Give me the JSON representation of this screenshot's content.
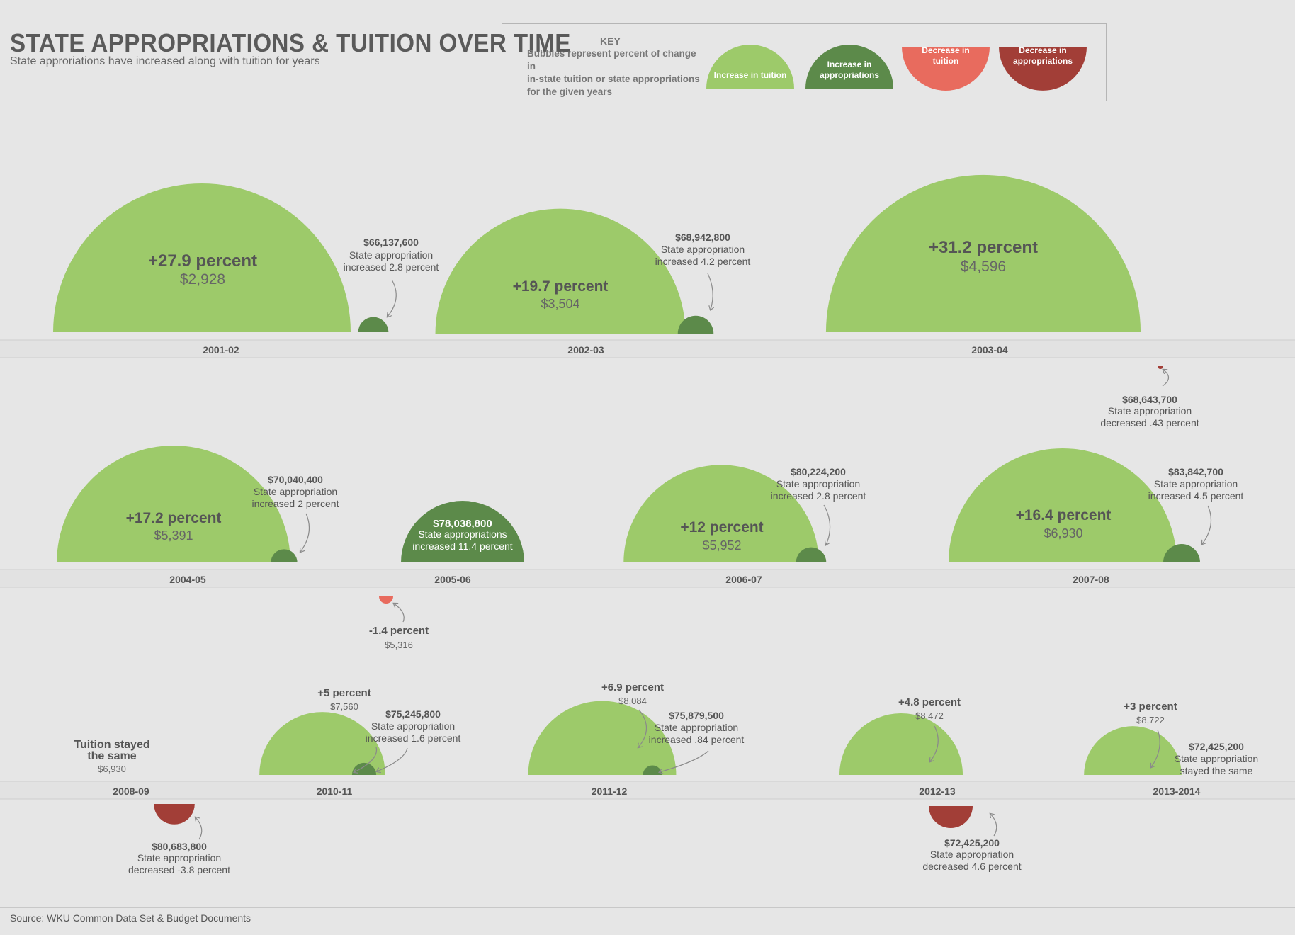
{
  "title": "STATE APPROPRIATIONS & TUITION OVER TIME",
  "subtitle": "State approriations have increased along with tuition for years",
  "source": "Source: WKU Common Data Set & Budget Documents",
  "key": {
    "heading": "KEY",
    "description_lines": [
      "Bubbles represent percent of change in",
      "in-state tuition or state appropriations",
      "for the given years"
    ],
    "items": [
      {
        "label_lines": [
          "Increase in tuition"
        ],
        "color": "#9dca6a"
      },
      {
        "label_lines": [
          "Increase in",
          "appropriations"
        ],
        "color": "#5c8a4a"
      },
      {
        "label_lines": [
          "Decrease in",
          "tuition"
        ],
        "color": "#e86b5e"
      },
      {
        "label_lines": [
          "Decrease in",
          "appropriations"
        ],
        "color": "#a23e37"
      }
    ]
  },
  "colors": {
    "tuition_increase": "#9dca6a",
    "appropriation_increase": "#5c8a4a",
    "tuition_decrease": "#e86b5e",
    "appropriation_decrease": "#a23e37"
  },
  "chart_data": {
    "type": "bubble-timeline",
    "years": [
      {
        "year": "2001-02",
        "tuition": {
          "change_pct": 27.9,
          "amount_label": "$2,928",
          "label": "+27.9 percent"
        },
        "appropriation": {
          "change_pct": 2.8,
          "amount_label": "$66,137,600",
          "note_lines": [
            "State appropriation",
            "increased 2.8 percent"
          ]
        }
      },
      {
        "year": "2002-03",
        "tuition": {
          "change_pct": 19.7,
          "amount_label": "$3,504",
          "label": "+19.7 percent"
        },
        "appropriation": {
          "change_pct": 4.2,
          "amount_label": "$68,942,800",
          "note_lines": [
            "State appropriation",
            "increased 4.2 percent"
          ]
        }
      },
      {
        "year": "2003-04",
        "tuition": {
          "change_pct": 31.2,
          "amount_label": "$4,596",
          "label": "+31.2 percent"
        },
        "appropriation": {
          "change_pct": -0.43,
          "amount_label": "$68,643,700",
          "note_lines": [
            "State appropriation",
            "decreased .43 percent"
          ]
        }
      },
      {
        "year": "2004-05",
        "tuition": {
          "change_pct": 17.2,
          "amount_label": "$5,391",
          "label": "+17.2 percent"
        },
        "appropriation": {
          "change_pct": 2,
          "amount_label": "$70,040,400",
          "note_lines": [
            "State appropriation",
            "increased 2 percent"
          ]
        }
      },
      {
        "year": "2005-06",
        "tuition": {
          "change_pct": -1.4,
          "amount_label": "$5,316",
          "label": "-1.4 percent"
        },
        "appropriation": {
          "change_pct": 11.4,
          "amount_label": "$78,038,800",
          "note_lines": [
            "State appropriations",
            "increased 11.4 percent"
          ]
        }
      },
      {
        "year": "2006-07",
        "tuition": {
          "change_pct": 12,
          "amount_label": "$5,952",
          "label": "+12 percent"
        },
        "appropriation": {
          "change_pct": 2.8,
          "amount_label": "$80,224,200",
          "note_lines": [
            "State appropriation",
            "increased 2.8 percent"
          ]
        }
      },
      {
        "year": "2007-08",
        "tuition": {
          "change_pct": 16.4,
          "amount_label": "$6,930",
          "label": "+16.4 percent"
        },
        "appropriation": {
          "change_pct": 4.5,
          "amount_label": "$83,842,700",
          "note_lines": [
            "State appropriation",
            "increased 4.5 percent"
          ]
        }
      },
      {
        "year": "2008-09",
        "tuition": {
          "change_pct": 0,
          "amount_label": "$6,930",
          "label_lines": [
            "Tuition stayed",
            "the same"
          ]
        },
        "appropriation": {
          "change_pct": -3.8,
          "amount_label": "$80,683,800",
          "note_lines": [
            "State appropriation",
            "decreased -3.8 percent"
          ]
        }
      },
      {
        "year": "2010-11",
        "tuition": {
          "change_pct": 5,
          "amount_label": "$7,560",
          "label": "+5 percent"
        },
        "appropriation": {
          "change_pct": 1.6,
          "amount_label": "$75,245,800",
          "note_lines": [
            "State appropriation",
            "increased 1.6 percent"
          ]
        }
      },
      {
        "year": "2011-12",
        "tuition": {
          "change_pct": 6.9,
          "amount_label": "$8,084",
          "label": "+6.9 percent"
        },
        "appropriation": {
          "change_pct": 0.84,
          "amount_label": "$75,879,500",
          "note_lines": [
            "State appropriation",
            "increased .84 percent"
          ]
        }
      },
      {
        "year": "2012-13",
        "tuition": {
          "change_pct": 4.8,
          "amount_label": "$8,472",
          "label": "+4.8 percent"
        },
        "appropriation": {
          "change_pct": -4.6,
          "amount_label": "$72,425,200",
          "note_lines": [
            "State appropriation",
            "decreased 4.6 percent"
          ]
        }
      },
      {
        "year": "2013-2014",
        "tuition": {
          "change_pct": 3,
          "amount_label": "$8,722",
          "label": "+3 percent"
        },
        "appropriation": {
          "change_pct": 0,
          "amount_label": "$72,425,200",
          "note_lines": [
            "State appropriation",
            "stayed the same"
          ]
        }
      }
    ]
  }
}
